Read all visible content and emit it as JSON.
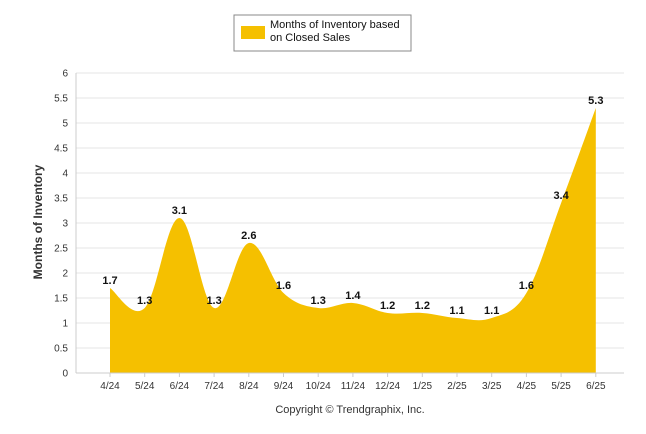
{
  "colors": {
    "area": "#f5c000",
    "grid": "#e4e4e4",
    "axis": "#cccccc",
    "legend_border": "#888888"
  },
  "legend": {
    "label_line1": "Months of Inventory based",
    "label_line2": "on Closed Sales"
  },
  "footer": {
    "text": "Copyright © Trendgraphix, Inc."
  },
  "chart_data": {
    "type": "area",
    "categories": [
      "4/24",
      "5/24",
      "6/24",
      "7/24",
      "8/24",
      "9/24",
      "10/24",
      "11/24",
      "12/24",
      "1/25",
      "2/25",
      "3/25",
      "4/25",
      "5/25",
      "6/25"
    ],
    "series": [
      {
        "name": "Months of Inventory based on Closed Sales",
        "values": [
          1.7,
          1.3,
          3.1,
          1.3,
          2.6,
          1.6,
          1.3,
          1.4,
          1.2,
          1.2,
          1.1,
          1.1,
          1.6,
          3.4,
          5.3
        ],
        "labels": [
          "1.7",
          "1.3",
          "3.1",
          "1.3",
          "2.6",
          "1.6",
          "1.3",
          "1.4",
          "1.2",
          "1.2",
          "1.1",
          "1.1",
          "1.6",
          "3.4",
          "5.3"
        ]
      }
    ],
    "ylabel": "Months of Inventory",
    "xlabel": "",
    "ylim": [
      0,
      6
    ],
    "yticks": [
      "0",
      "0.5",
      "1",
      "1.5",
      "2",
      "2.5",
      "3",
      "3.5",
      "4",
      "4.5",
      "5",
      "5.5",
      "6"
    ],
    "grid": true,
    "legend_position": "top-center"
  }
}
